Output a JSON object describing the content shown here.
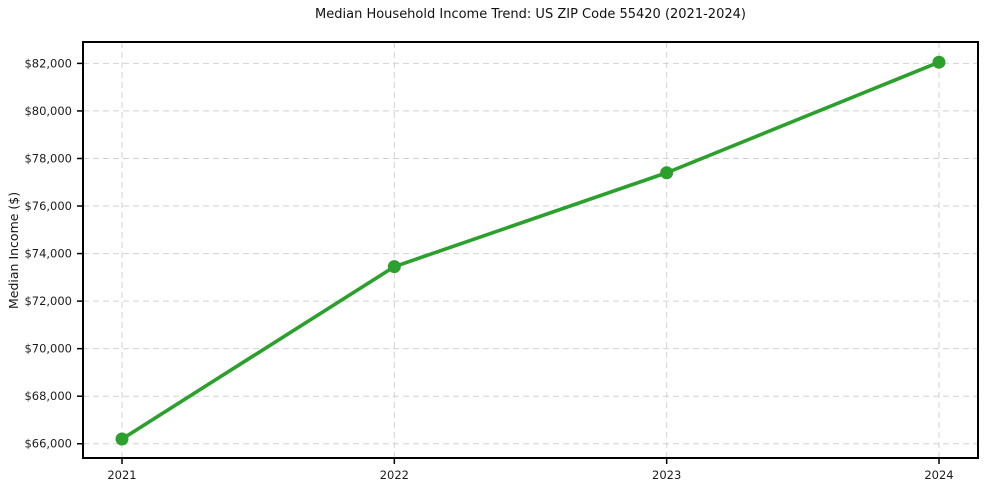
{
  "chart_data": {
    "type": "line",
    "title": "Median Household Income Trend: US ZIP Code 55420 (2021-2024)",
    "xlabel": "",
    "ylabel": "Median Income ($)",
    "categories": [
      "2021",
      "2022",
      "2023",
      "2024"
    ],
    "series": [
      {
        "name": "Median Income",
        "color": "#2ca02c",
        "values": [
          66200,
          73450,
          77400,
          82050
        ]
      }
    ],
    "y_ticks": [
      {
        "value": 66000,
        "label": "$66,000"
      },
      {
        "value": 68000,
        "label": "$68,000"
      },
      {
        "value": 70000,
        "label": "$70,000"
      },
      {
        "value": 72000,
        "label": "$72,000"
      },
      {
        "value": 74000,
        "label": "$74,000"
      },
      {
        "value": 76000,
        "label": "$76,000"
      },
      {
        "value": 78000,
        "label": "$78,000"
      },
      {
        "value": 80000,
        "label": "$80,000"
      },
      {
        "value": 82000,
        "label": "$82,000"
      }
    ],
    "ylim": [
      65400,
      82900
    ],
    "grid": {
      "show": true,
      "line_style": "dashed",
      "color": "#d2d2d2"
    },
    "legend": {
      "show": false
    },
    "marker": "circle"
  },
  "style": {
    "background": "#ffffff",
    "line_color": "#2ca02c",
    "marker_color": "#2ca02c",
    "axis_color": "#000000",
    "text_color": "#1c1c1c"
  }
}
